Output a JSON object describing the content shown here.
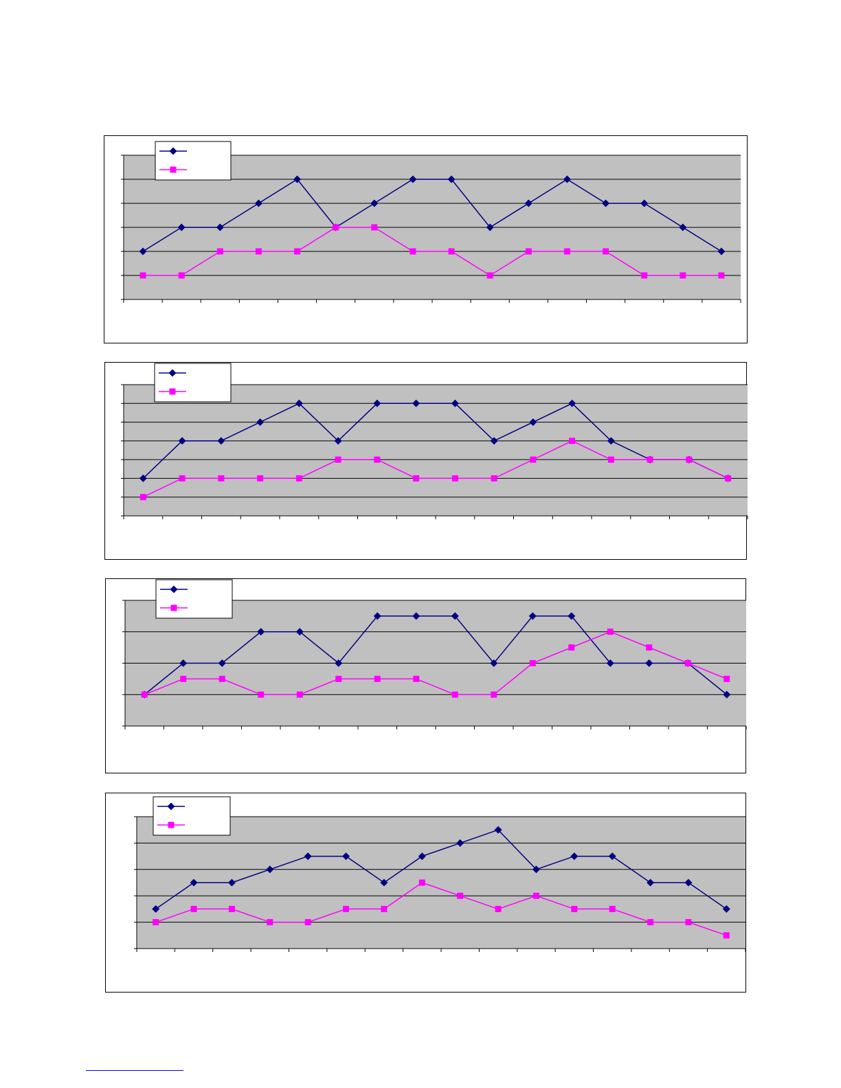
{
  "colors": {
    "plot_background": "#c0c0c0",
    "series_a": "#000080",
    "series_b": "#ff00ff",
    "gridline": "#000000",
    "footnote_rule": "#0000ff"
  },
  "chart_data": [
    {
      "type": "line",
      "x": [
        1,
        2,
        3,
        4,
        5,
        6,
        7,
        8,
        9,
        10,
        11,
        12,
        13,
        14,
        15,
        16
      ],
      "series": [
        {
          "marker": "diamond",
          "values": [
            2,
            3,
            3,
            4,
            5,
            3,
            4,
            5,
            5,
            3,
            4,
            5,
            4,
            4,
            3,
            2
          ]
        },
        {
          "marker": "square",
          "values": [
            1,
            1,
            2,
            2,
            2,
            3,
            3,
            2,
            2,
            1,
            2,
            2,
            2,
            1,
            1,
            1
          ]
        }
      ],
      "ylim": [
        0,
        6
      ],
      "grid": true,
      "legend": "top-left"
    },
    {
      "type": "line",
      "x": [
        1,
        2,
        3,
        4,
        5,
        6,
        7,
        8,
        9,
        10,
        11,
        12,
        13,
        14,
        15,
        16
      ],
      "series": [
        {
          "marker": "diamond",
          "values": [
            2,
            4,
            4,
            5,
            6,
            4,
            6,
            6,
            6,
            4,
            5,
            6,
            4,
            3,
            3,
            2
          ]
        },
        {
          "marker": "square",
          "values": [
            1,
            2,
            2,
            2,
            2,
            3,
            3,
            2,
            2,
            2,
            3,
            4,
            3,
            3,
            3,
            2
          ]
        }
      ],
      "ylim": [
        0,
        7
      ],
      "grid": true,
      "legend": "top-left"
    },
    {
      "type": "line",
      "x": [
        1,
        2,
        3,
        4,
        5,
        6,
        7,
        8,
        9,
        10,
        11,
        12,
        13,
        14,
        15,
        16
      ],
      "series": [
        {
          "marker": "diamond",
          "values": [
            1,
            2,
            2,
            3,
            3,
            2,
            3.5,
            3.5,
            3.5,
            2,
            3.5,
            3.5,
            2,
            2,
            2,
            1
          ]
        },
        {
          "marker": "square",
          "values": [
            1,
            1.5,
            1.5,
            1,
            1,
            1.5,
            1.5,
            1.5,
            1,
            1,
            2,
            2.5,
            3,
            2.5,
            2,
            1.5
          ]
        }
      ],
      "ylim": [
        0,
        4
      ],
      "grid": true,
      "legend": "top-left"
    },
    {
      "type": "line",
      "x": [
        1,
        2,
        3,
        4,
        5,
        6,
        7,
        8,
        9,
        10,
        11,
        12,
        13,
        14,
        15,
        16
      ],
      "series": [
        {
          "marker": "diamond",
          "values": [
            1.5,
            2.5,
            2.5,
            3,
            3.5,
            3.5,
            2.5,
            3.5,
            4,
            4.5,
            3,
            3.5,
            3.5,
            2.5,
            2.5,
            1.5
          ]
        },
        {
          "marker": "square",
          "values": [
            1,
            1.5,
            1.5,
            1,
            1,
            1.5,
            1.5,
            2.5,
            2,
            1.5,
            2,
            1.5,
            1.5,
            1,
            1,
            0.5
          ]
        }
      ],
      "ylim": [
        0,
        5
      ],
      "grid": true,
      "legend": "top-left"
    }
  ]
}
